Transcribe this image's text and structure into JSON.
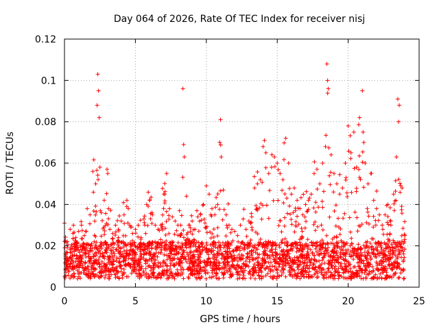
{
  "chart_data": {
    "type": "scatter",
    "title": "Day 064 of 2026, Rate Of TEC Index for receiver nisj",
    "xlabel": "GPS time / hours",
    "ylabel": "ROTI / TECUs",
    "xlim": [
      0,
      25
    ],
    "ylim": [
      0,
      0.12
    ],
    "x_ticks": [
      0,
      5,
      10,
      15,
      20,
      25
    ],
    "x_tick_labels": [
      "0",
      "5",
      "10",
      "15",
      "20",
      "25"
    ],
    "y_ticks": [
      0,
      0.02,
      0.04,
      0.06,
      0.08,
      0.1,
      0.12
    ],
    "y_tick_labels": [
      "0",
      "0.02",
      "0.04",
      "0.06",
      "0.08",
      "0.1",
      "0.12"
    ],
    "grid": true,
    "marker": "+",
    "color": "#ff0000",
    "series": [
      {
        "name": "ROTI",
        "x": [
          0.0,
          0.2,
          0.4,
          0.6,
          0.8,
          1.0,
          1.2,
          1.4,
          1.6,
          1.8,
          2.0,
          2.2,
          2.3,
          2.35,
          2.4,
          2.45,
          2.5,
          2.6,
          2.8,
          3.0,
          3.05,
          3.1,
          3.2,
          3.4,
          3.6,
          3.8,
          4.0,
          4.2,
          4.4,
          4.5,
          4.6,
          4.8,
          5.0,
          5.2,
          5.4,
          5.6,
          5.8,
          6.0,
          6.2,
          6.4,
          6.6,
          6.8,
          7.0,
          7.2,
          7.4,
          7.6,
          7.8,
          8.0,
          8.2,
          8.35,
          8.4,
          8.45,
          8.6,
          8.8,
          9.0,
          9.2,
          9.4,
          9.6,
          9.8,
          10.0,
          10.2,
          10.4,
          10.6,
          10.8,
          11.0,
          11.05,
          11.2,
          11.4,
          11.6,
          11.8,
          12.0,
          12.2,
          12.4,
          12.6,
          12.8,
          13.0,
          13.2,
          13.4,
          13.6,
          13.8,
          14.0,
          14.1,
          14.2,
          14.4,
          14.6,
          14.8,
          15.0,
          15.2,
          15.4,
          15.6,
          15.8,
          16.0,
          16.2,
          16.4,
          16.6,
          16.8,
          17.0,
          17.2,
          17.4,
          17.6,
          17.8,
          18.0,
          18.2,
          18.4,
          18.5,
          18.55,
          18.6,
          18.8,
          19.0,
          19.2,
          19.4,
          19.6,
          19.8,
          20.0,
          20.2,
          20.4,
          20.6,
          20.8,
          21.0,
          21.05,
          21.1,
          21.2,
          21.4,
          21.6,
          21.8,
          22.0,
          22.2,
          22.4,
          22.6,
          22.8,
          23.0,
          23.2,
          23.4,
          23.5,
          23.55,
          23.6,
          23.8,
          24.0
        ],
        "y": [
          0.031,
          0.022,
          0.028,
          0.026,
          0.024,
          0.027,
          0.03,
          0.025,
          0.038,
          0.035,
          0.056,
          0.05,
          0.088,
          0.103,
          0.095,
          0.082,
          0.058,
          0.036,
          0.042,
          0.057,
          0.055,
          0.038,
          0.028,
          0.026,
          0.03,
          0.024,
          0.032,
          0.035,
          0.042,
          0.038,
          0.03,
          0.026,
          0.028,
          0.03,
          0.024,
          0.033,
          0.04,
          0.042,
          0.035,
          0.03,
          0.028,
          0.03,
          0.045,
          0.055,
          0.038,
          0.034,
          0.032,
          0.03,
          0.03,
          0.096,
          0.069,
          0.063,
          0.044,
          0.03,
          0.032,
          0.028,
          0.034,
          0.035,
          0.04,
          0.049,
          0.045,
          0.038,
          0.035,
          0.04,
          0.081,
          0.063,
          0.047,
          0.035,
          0.03,
          0.028,
          0.027,
          0.025,
          0.03,
          0.033,
          0.028,
          0.032,
          0.034,
          0.048,
          0.05,
          0.052,
          0.068,
          0.071,
          0.065,
          0.055,
          0.058,
          0.063,
          0.06,
          0.055,
          0.052,
          0.072,
          0.06,
          0.045,
          0.048,
          0.042,
          0.038,
          0.035,
          0.04,
          0.042,
          0.045,
          0.055,
          0.057,
          0.05,
          0.06,
          0.068,
          0.108,
          0.1,
          0.096,
          0.064,
          0.055,
          0.05,
          0.045,
          0.048,
          0.06,
          0.078,
          0.065,
          0.075,
          0.058,
          0.082,
          0.095,
          0.075,
          0.07,
          0.06,
          0.05,
          0.055,
          0.042,
          0.038,
          0.035,
          0.03,
          0.035,
          0.04,
          0.032,
          0.045,
          0.063,
          0.091,
          0.08,
          0.088,
          0.048,
          0.025
        ]
      }
    ]
  }
}
